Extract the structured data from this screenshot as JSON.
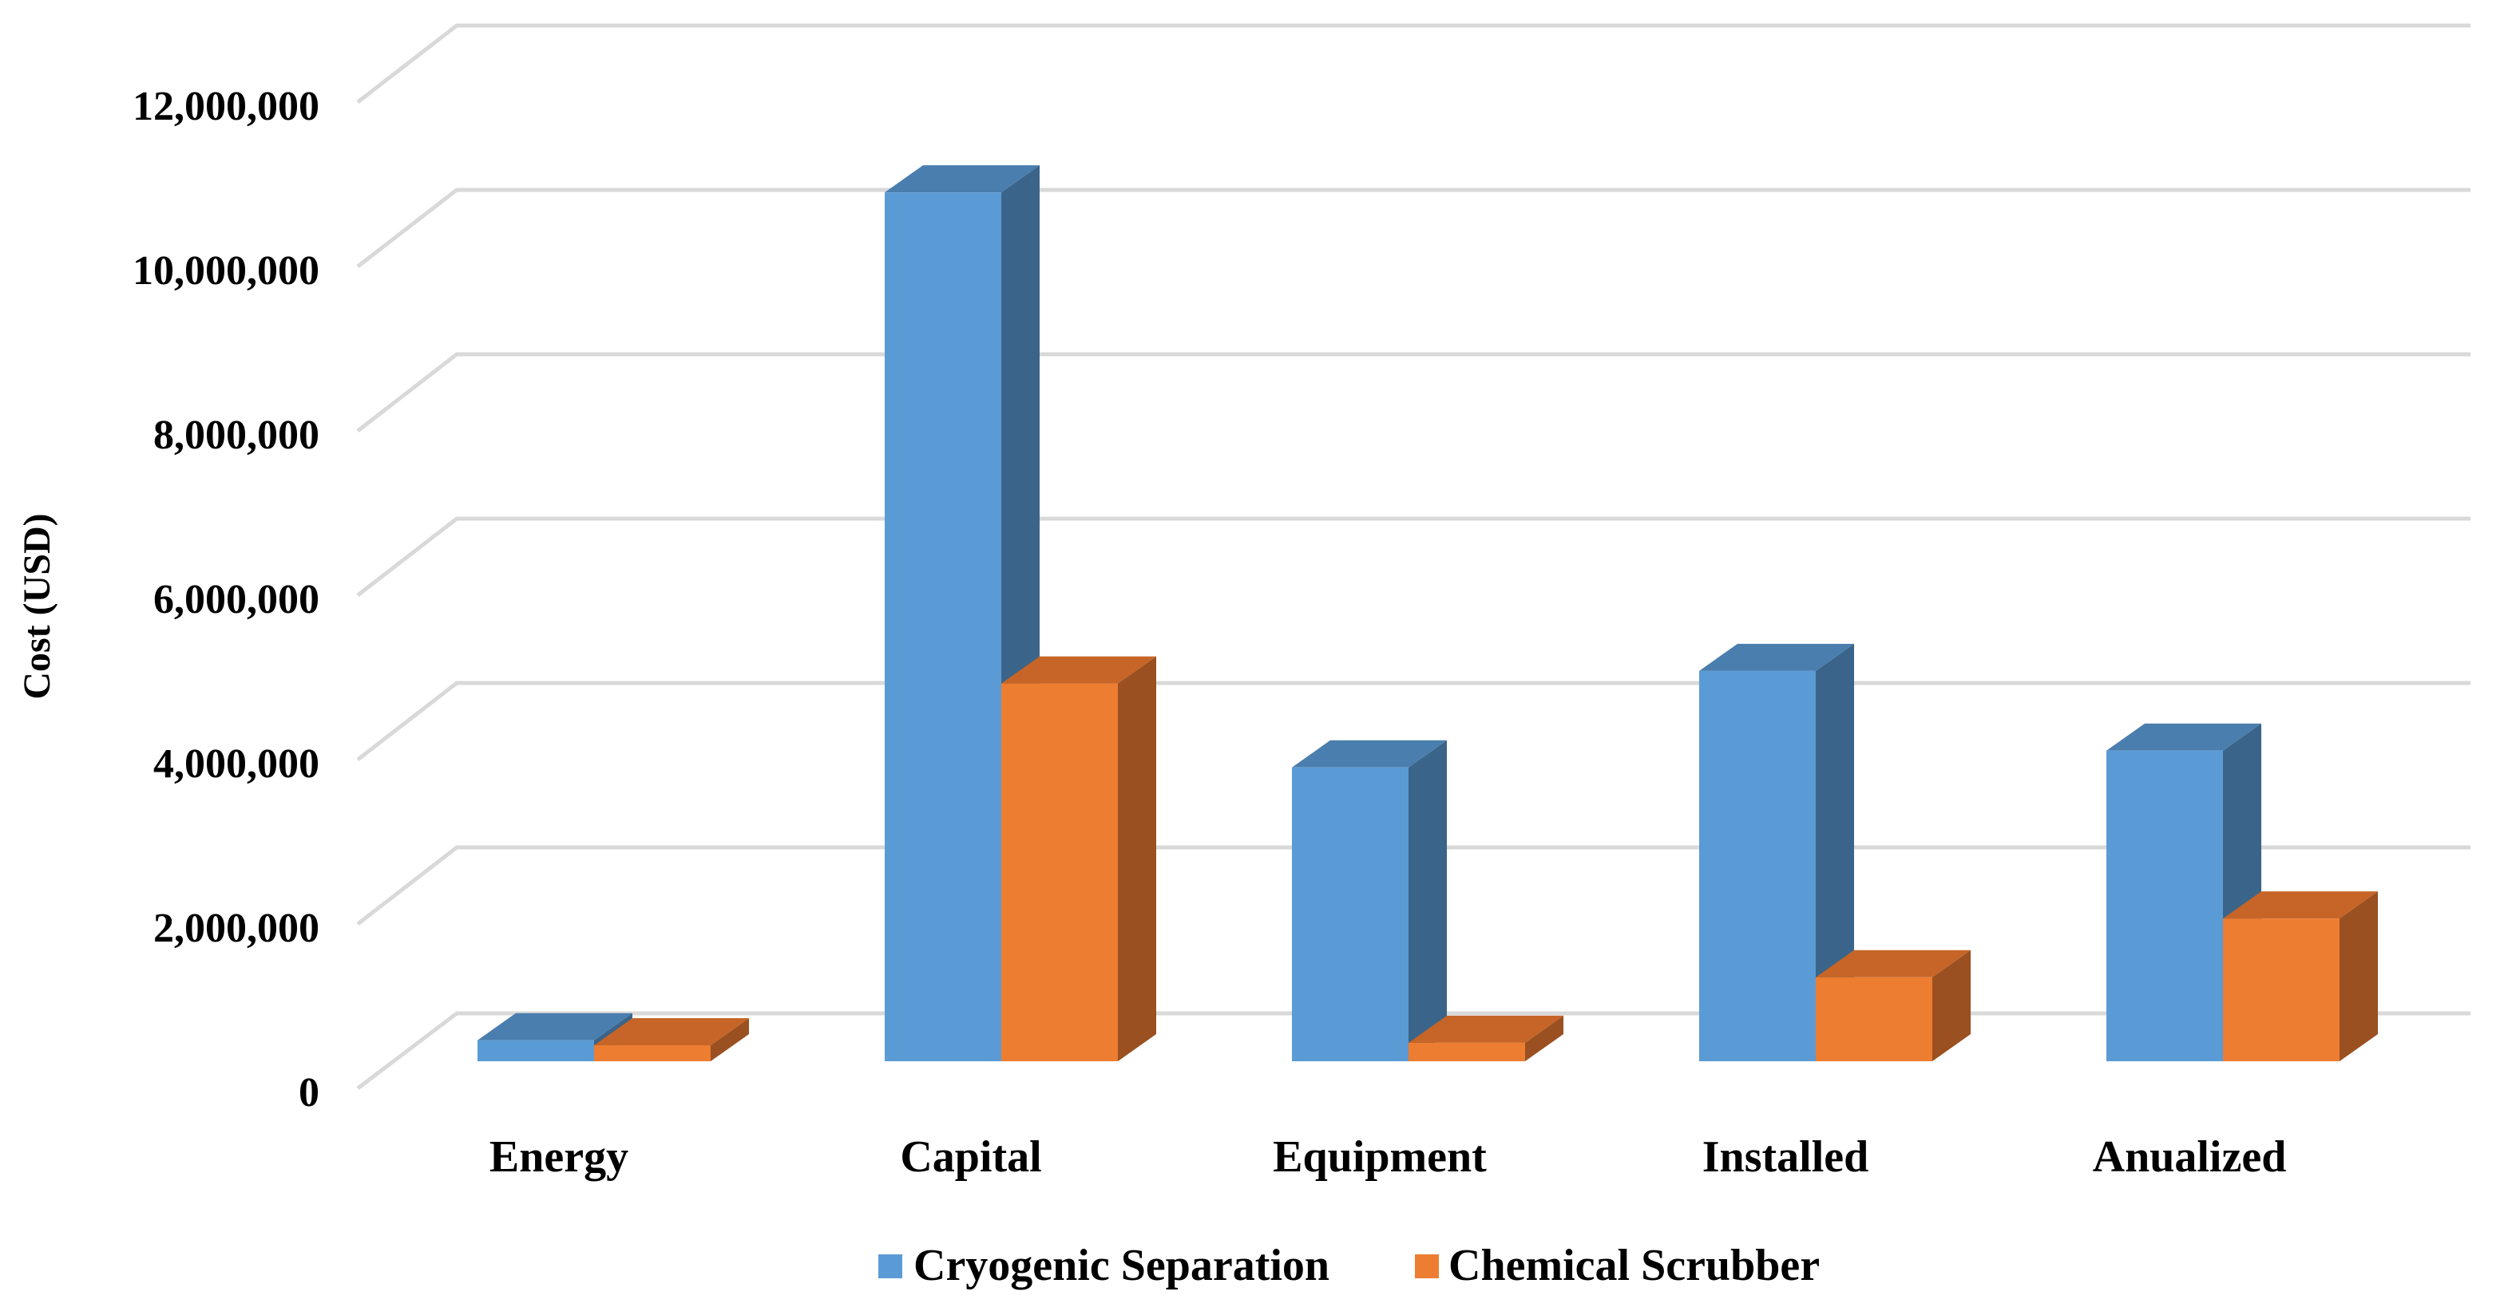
{
  "chart_data": {
    "type": "bar",
    "title": "",
    "xlabel": "",
    "ylabel": "Cost (USD)",
    "ylim": [
      0,
      12000000
    ],
    "yticks": [
      0,
      2000000,
      4000000,
      6000000,
      8000000,
      10000000,
      12000000
    ],
    "ytick_labels": [
      "0",
      "2,000,000",
      "4,000,000",
      "6,000,000",
      "8,000,000",
      "10,000,000",
      "12,000,000"
    ],
    "categories": [
      "Energy",
      "Capital",
      "Equipment",
      "Installed",
      "Anualized"
    ],
    "series": [
      {
        "name": "Cryogenic Separation",
        "values": [
          250000,
          10350000,
          3500000,
          4650000,
          3700000
        ]
      },
      {
        "name": "Chemical Scrubber",
        "values": [
          190000,
          4500000,
          220000,
          1000000,
          1700000
        ]
      }
    ],
    "legend_position": "bottom-center",
    "grid": true,
    "colors": {
      "series": [
        {
          "front": "#5b9bd5",
          "side": "#3a6489",
          "top": "#4a7eae"
        },
        {
          "front": "#ed7d31",
          "side": "#9a5020",
          "top": "#c66527"
        }
      ],
      "grid": "#d9d9d9",
      "text": "#000000"
    }
  }
}
